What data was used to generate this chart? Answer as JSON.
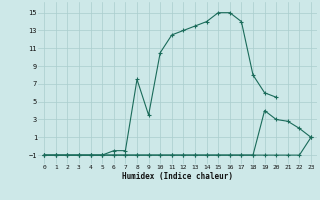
{
  "xlabel": "Humidex (Indice chaleur)",
  "background_color": "#cde8e8",
  "line_color": "#1a6b5a",
  "grid_color": "#aacece",
  "xlim": [
    -0.5,
    23.5
  ],
  "ylim": [
    -2.0,
    16.2
  ],
  "xticks": [
    0,
    1,
    2,
    3,
    4,
    5,
    6,
    7,
    8,
    9,
    10,
    11,
    12,
    13,
    14,
    15,
    16,
    17,
    18,
    19,
    20,
    21,
    22,
    23
  ],
  "yticks": [
    -1,
    1,
    3,
    5,
    7,
    9,
    11,
    13,
    15
  ],
  "line1_x": [
    0,
    1,
    2,
    3,
    4,
    5,
    6,
    7,
    8,
    9,
    10,
    11,
    12,
    13,
    14,
    15,
    16,
    17,
    18,
    19,
    20,
    21,
    22,
    23
  ],
  "line1_y": [
    -1,
    -1,
    -1,
    -1,
    -1,
    -1,
    -1,
    -1,
    -1,
    -1,
    -1,
    -1,
    -1,
    -1,
    -1,
    -1,
    -1,
    -1,
    -1,
    -1,
    -1,
    -1,
    -1,
    1
  ],
  "line2_x": [
    0,
    1,
    2,
    3,
    4,
    5,
    6,
    7,
    8,
    9,
    10,
    11,
    12,
    13,
    14,
    15,
    16,
    17,
    18,
    19,
    20,
    21,
    22,
    23
  ],
  "line2_y": [
    -1,
    -1,
    -1,
    -1,
    -1,
    -1,
    -1,
    -1,
    -1,
    -1,
    -1,
    -1,
    -1,
    -1,
    -1,
    -1,
    -1,
    -1,
    -1,
    4,
    3,
    2.8,
    2,
    1
  ],
  "line3_x": [
    0,
    1,
    2,
    3,
    4,
    5,
    6,
    7,
    8,
    9,
    10,
    11,
    12,
    13,
    14,
    15,
    16,
    17,
    18,
    19,
    20
  ],
  "line3_y": [
    -1,
    -1,
    -1,
    -1,
    -1,
    -1,
    -0.5,
    -0.5,
    7.5,
    3.5,
    10.5,
    12.5,
    13,
    13.5,
    14,
    15,
    15,
    14,
    8,
    6,
    5.5
  ]
}
